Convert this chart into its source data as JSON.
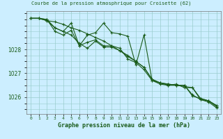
{
  "title": "Graphe pression niveau de la mer (hPa)",
  "suptitle": "Courbe de la pression atmosphrique pour Croisette (62)",
  "x_labels": [
    "0",
    "1",
    "2",
    "3",
    "4",
    "5",
    "6",
    "7",
    "8",
    "9",
    "10",
    "11",
    "12",
    "13",
    "14",
    "15",
    "16",
    "17",
    "18",
    "19",
    "20",
    "21",
    "22",
    "23"
  ],
  "xlim": [
    -0.5,
    23.5
  ],
  "ylim": [
    1025.3,
    1029.6
  ],
  "yticks": [
    1026,
    1027,
    1028
  ],
  "background_color": "#cceeff",
  "grid_color": "#99cccc",
  "line_color": "#1a5c1a",
  "series": [
    [
      1029.3,
      1029.3,
      1029.2,
      1029.15,
      1029.05,
      1028.9,
      1028.8,
      1028.65,
      1028.5,
      1028.35,
      1028.15,
      1027.95,
      1027.75,
      1027.5,
      1027.25,
      1026.75,
      1026.6,
      1026.55,
      1026.5,
      1026.5,
      1026.05,
      1025.95,
      1025.85,
      1025.65
    ],
    [
      1029.3,
      1029.3,
      1029.25,
      1028.9,
      1028.75,
      1028.6,
      1028.25,
      1028.05,
      1028.35,
      1028.1,
      1028.1,
      1027.95,
      1027.7,
      1027.5,
      1027.25,
      1026.75,
      1026.6,
      1026.55,
      1026.5,
      1026.5,
      1026.1,
      1025.9,
      1025.85,
      1025.65
    ],
    [
      1029.3,
      1029.3,
      1029.25,
      1028.75,
      1028.6,
      1028.8,
      1028.15,
      1028.6,
      1028.7,
      1029.1,
      1028.7,
      1028.65,
      1028.55,
      1027.35,
      1028.6,
      1026.7,
      1026.55,
      1026.5,
      1026.55,
      1026.4,
      1026.4,
      1025.95,
      1025.85,
      1025.6
    ],
    [
      1029.3,
      1029.3,
      1029.2,
      1028.9,
      1028.75,
      1029.1,
      1028.15,
      1028.3,
      1028.4,
      1028.15,
      1028.15,
      1028.05,
      1027.6,
      1027.45,
      1027.15,
      1026.7,
      1026.6,
      1026.5,
      1026.5,
      1026.45,
      1026.4,
      1025.9,
      1025.8,
      1025.55
    ]
  ]
}
